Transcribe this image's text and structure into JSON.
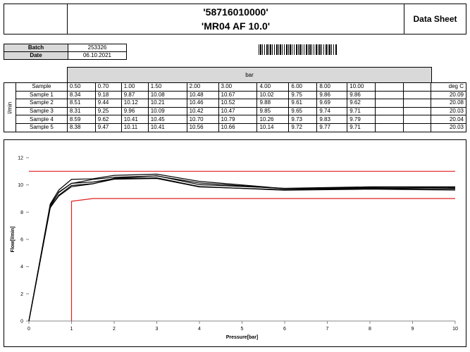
{
  "header": {
    "title_line1": "'58716010000'",
    "title_line2": "'MR04 AF 10.0'",
    "label": "Data Sheet"
  },
  "info": {
    "rows": [
      [
        "Batch",
        "253326"
      ],
      [
        "Date",
        "06.10.2021"
      ]
    ]
  },
  "table": {
    "group_header": "bar",
    "side_label": "l/min",
    "columns": [
      "Sample",
      "0.50",
      "0.70",
      "1.00",
      "1.50",
      "2.00",
      "3.00",
      "4.00",
      "6.00",
      "8.00",
      "10.00",
      "deg C"
    ],
    "rows": [
      [
        "Sample 1",
        "8.34",
        "9.18",
        "9.87",
        "10.08",
        "10.48",
        "10.67",
        "10.02",
        "9.75",
        "9.86",
        "9.86",
        "20.09"
      ],
      [
        "Sample 2",
        "8.51",
        "9.44",
        "10.12",
        "10.21",
        "10.46",
        "10.52",
        "9.88",
        "9.61",
        "9.69",
        "9.62",
        "20.08"
      ],
      [
        "Sample 3",
        "8.31",
        "9.25",
        "9.96",
        "10.09",
        "10.42",
        "10.47",
        "9.85",
        "9.65",
        "9.74",
        "9.71",
        "20.03"
      ],
      [
        "Sample 4",
        "8.59",
        "9.62",
        "10.41",
        "10.45",
        "10.70",
        "10.79",
        "10.26",
        "9.73",
        "9.83",
        "9.79",
        "20.04"
      ],
      [
        "Sample 5",
        "8.38",
        "9.47",
        "10.11",
        "10.41",
        "10.56",
        "10.66",
        "10.14",
        "9.72",
        "9.77",
        "9.71",
        "20.03"
      ]
    ]
  },
  "chart_data": {
    "type": "line",
    "x_label": "Pressure[bar]",
    "y_label": "Flow[l/min]",
    "xlim": [
      0,
      10
    ],
    "ylim": [
      0,
      12
    ],
    "xticks": [
      0,
      1,
      2,
      3,
      4,
      5,
      6,
      7,
      8,
      9,
      10
    ],
    "yticks": [
      0,
      2,
      4,
      6,
      8,
      10,
      12
    ],
    "grid": false,
    "series": [
      {
        "color": "#000000",
        "x": [
          0,
          0.5,
          0.7,
          1,
          1.5,
          2,
          3,
          4,
          6,
          8,
          10
        ],
        "values": [
          0,
          8.34,
          9.18,
          9.87,
          10.08,
          10.48,
          10.67,
          10.02,
          9.75,
          9.86,
          9.86
        ]
      },
      {
        "color": "#000000",
        "x": [
          0,
          0.5,
          0.7,
          1,
          1.5,
          2,
          3,
          4,
          6,
          8,
          10
        ],
        "values": [
          0,
          8.51,
          9.44,
          10.12,
          10.21,
          10.46,
          10.52,
          9.88,
          9.61,
          9.69,
          9.62
        ]
      },
      {
        "color": "#000000",
        "x": [
          0,
          0.5,
          0.7,
          1,
          1.5,
          2,
          3,
          4,
          6,
          8,
          10
        ],
        "values": [
          0,
          8.31,
          9.25,
          9.96,
          10.09,
          10.42,
          10.47,
          9.85,
          9.65,
          9.74,
          9.71
        ]
      },
      {
        "color": "#000000",
        "x": [
          0,
          0.5,
          0.7,
          1,
          1.5,
          2,
          3,
          4,
          6,
          8,
          10
        ],
        "values": [
          0,
          8.59,
          9.62,
          10.41,
          10.45,
          10.7,
          10.79,
          10.26,
          9.73,
          9.83,
          9.79
        ]
      },
      {
        "color": "#000000",
        "x": [
          0,
          0.5,
          0.7,
          1,
          1.5,
          2,
          3,
          4,
          6,
          8,
          10
        ],
        "values": [
          0,
          8.38,
          9.47,
          10.11,
          10.41,
          10.56,
          10.66,
          10.14,
          9.72,
          9.77,
          9.71
        ]
      },
      {
        "color": "#e02020",
        "x": [
          0,
          10
        ],
        "values": [
          11,
          11
        ]
      },
      {
        "color": "#e02020",
        "x": [
          1,
          1,
          1.5,
          10
        ],
        "values": [
          0,
          8.8,
          9,
          9
        ]
      }
    ]
  }
}
